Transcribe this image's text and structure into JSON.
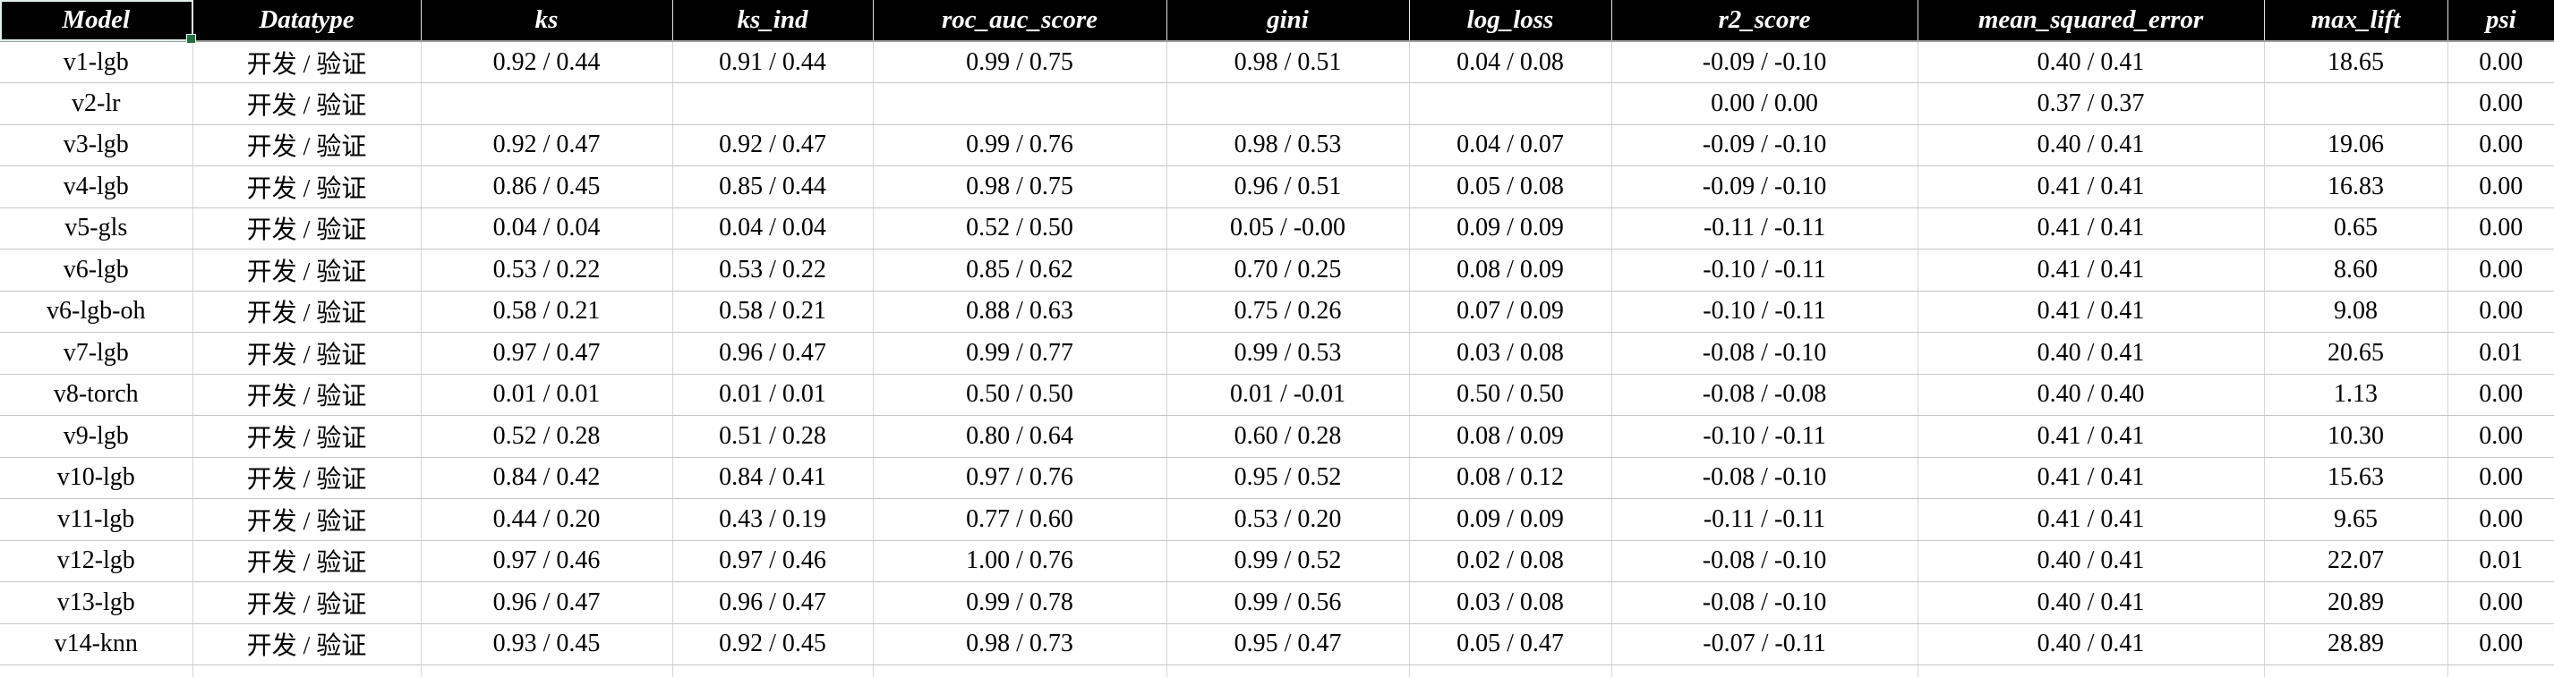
{
  "table": {
    "selected_cell": "Model",
    "columns": [
      {
        "key": "model",
        "label": "Model"
      },
      {
        "key": "datatype",
        "label": "Datatype"
      },
      {
        "key": "ks",
        "label": "ks"
      },
      {
        "key": "ks_ind",
        "label": "ks_ind"
      },
      {
        "key": "roc_auc_score",
        "label": "roc_auc_score"
      },
      {
        "key": "gini",
        "label": "gini"
      },
      {
        "key": "log_loss",
        "label": "log_loss"
      },
      {
        "key": "r2_score",
        "label": "r2_score"
      },
      {
        "key": "mean_squared_error",
        "label": "mean_squared_error"
      },
      {
        "key": "max_lift",
        "label": "max_lift"
      },
      {
        "key": "psi",
        "label": "psi"
      }
    ],
    "rows": [
      {
        "model": "v1-lgb",
        "datatype": "开发 / 验证",
        "ks": "0.92 / 0.44",
        "ks_ind": "0.91 / 0.44",
        "roc_auc_score": "0.99 / 0.75",
        "gini": "0.98 / 0.51",
        "log_loss": "0.04 / 0.08",
        "r2_score": "-0.09 / -0.10",
        "mean_squared_error": "0.40 / 0.41",
        "max_lift": "18.65",
        "psi": "0.00"
      },
      {
        "model": "v2-lr",
        "datatype": "开发 / 验证",
        "ks": "",
        "ks_ind": "",
        "roc_auc_score": "",
        "gini": "",
        "log_loss": "",
        "r2_score": "0.00 / 0.00",
        "mean_squared_error": "0.37 / 0.37",
        "max_lift": "",
        "psi": "0.00"
      },
      {
        "model": "v3-lgb",
        "datatype": "开发 / 验证",
        "ks": "0.92 / 0.47",
        "ks_ind": "0.92 / 0.47",
        "roc_auc_score": "0.99 / 0.76",
        "gini": "0.98 / 0.53",
        "log_loss": "0.04 / 0.07",
        "r2_score": "-0.09 / -0.10",
        "mean_squared_error": "0.40 / 0.41",
        "max_lift": "19.06",
        "psi": "0.00"
      },
      {
        "model": "v4-lgb",
        "datatype": "开发 / 验证",
        "ks": "0.86 / 0.45",
        "ks_ind": "0.85 / 0.44",
        "roc_auc_score": "0.98 / 0.75",
        "gini": "0.96 / 0.51",
        "log_loss": "0.05 / 0.08",
        "r2_score": "-0.09 / -0.10",
        "mean_squared_error": "0.41 / 0.41",
        "max_lift": "16.83",
        "psi": "0.00"
      },
      {
        "model": "v5-gls",
        "datatype": "开发 / 验证",
        "ks": "0.04 / 0.04",
        "ks_ind": "0.04 / 0.04",
        "roc_auc_score": "0.52 / 0.50",
        "gini": "0.05 / -0.00",
        "log_loss": "0.09 / 0.09",
        "r2_score": "-0.11 / -0.11",
        "mean_squared_error": "0.41 / 0.41",
        "max_lift": "0.65",
        "psi": "0.00"
      },
      {
        "model": "v6-lgb",
        "datatype": "开发 / 验证",
        "ks": "0.53 / 0.22",
        "ks_ind": "0.53 / 0.22",
        "roc_auc_score": "0.85 / 0.62",
        "gini": "0.70 / 0.25",
        "log_loss": "0.08 / 0.09",
        "r2_score": "-0.10 / -0.11",
        "mean_squared_error": "0.41 / 0.41",
        "max_lift": "8.60",
        "psi": "0.00"
      },
      {
        "model": "v6-lgb-oh",
        "datatype": "开发 / 验证",
        "ks": "0.58 / 0.21",
        "ks_ind": "0.58 / 0.21",
        "roc_auc_score": "0.88 / 0.63",
        "gini": "0.75 / 0.26",
        "log_loss": "0.07 / 0.09",
        "r2_score": "-0.10 / -0.11",
        "mean_squared_error": "0.41 / 0.41",
        "max_lift": "9.08",
        "psi": "0.00"
      },
      {
        "model": "v7-lgb",
        "datatype": "开发 / 验证",
        "ks": "0.97 / 0.47",
        "ks_ind": "0.96 / 0.47",
        "roc_auc_score": "0.99 / 0.77",
        "gini": "0.99 / 0.53",
        "log_loss": "0.03 / 0.08",
        "r2_score": "-0.08 / -0.10",
        "mean_squared_error": "0.40 / 0.41",
        "max_lift": "20.65",
        "psi": "0.01"
      },
      {
        "model": "v8-torch",
        "datatype": "开发 / 验证",
        "ks": "0.01 / 0.01",
        "ks_ind": "0.01 / 0.01",
        "roc_auc_score": "0.50 / 0.50",
        "gini": "0.01 / -0.01",
        "log_loss": "0.50 / 0.50",
        "r2_score": "-0.08 / -0.08",
        "mean_squared_error": "0.40 / 0.40",
        "max_lift": "1.13",
        "psi": "0.00"
      },
      {
        "model": "v9-lgb",
        "datatype": "开发 / 验证",
        "ks": "0.52 / 0.28",
        "ks_ind": "0.51 / 0.28",
        "roc_auc_score": "0.80 / 0.64",
        "gini": "0.60 / 0.28",
        "log_loss": "0.08 / 0.09",
        "r2_score": "-0.10 / -0.11",
        "mean_squared_error": "0.41 / 0.41",
        "max_lift": "10.30",
        "psi": "0.00"
      },
      {
        "model": "v10-lgb",
        "datatype": "开发 / 验证",
        "ks": "0.84 / 0.42",
        "ks_ind": "0.84 / 0.41",
        "roc_auc_score": "0.97 / 0.76",
        "gini": "0.95 / 0.52",
        "log_loss": "0.08 / 0.12",
        "r2_score": "-0.08 / -0.10",
        "mean_squared_error": "0.41 / 0.41",
        "max_lift": "15.63",
        "psi": "0.00"
      },
      {
        "model": "v11-lgb",
        "datatype": "开发 / 验证",
        "ks": "0.44 / 0.20",
        "ks_ind": "0.43 / 0.19",
        "roc_auc_score": "0.77 / 0.60",
        "gini": "0.53 / 0.20",
        "log_loss": "0.09 / 0.09",
        "r2_score": "-0.11 / -0.11",
        "mean_squared_error": "0.41 / 0.41",
        "max_lift": "9.65",
        "psi": "0.00"
      },
      {
        "model": "v12-lgb",
        "datatype": "开发 / 验证",
        "ks": "0.97 / 0.46",
        "ks_ind": "0.97 / 0.46",
        "roc_auc_score": "1.00 / 0.76",
        "gini": "0.99 / 0.52",
        "log_loss": "0.02 / 0.08",
        "r2_score": "-0.08 / -0.10",
        "mean_squared_error": "0.40 / 0.41",
        "max_lift": "22.07",
        "psi": "0.01"
      },
      {
        "model": "v13-lgb",
        "datatype": "开发 / 验证",
        "ks": "0.96 / 0.47",
        "ks_ind": "0.96 / 0.47",
        "roc_auc_score": "0.99 / 0.78",
        "gini": "0.99 / 0.56",
        "log_loss": "0.03 / 0.08",
        "r2_score": "-0.08 / -0.10",
        "mean_squared_error": "0.40 / 0.41",
        "max_lift": "20.89",
        "psi": "0.00"
      },
      {
        "model": "v14-knn",
        "datatype": "开发 / 验证",
        "ks": "0.93 / 0.45",
        "ks_ind": "0.92 / 0.45",
        "roc_auc_score": "0.98 / 0.73",
        "gini": "0.95 / 0.47",
        "log_loss": "0.05 / 0.47",
        "r2_score": "-0.07 / -0.11",
        "mean_squared_error": "0.40 / 0.41",
        "max_lift": "28.89",
        "psi": "0.00"
      }
    ],
    "colors": {
      "header_bg": "#000000",
      "header_text": "#ffffff",
      "gridline": "#c6c6c6",
      "selection_outline": "#e3eee8",
      "fill_handle": "#1e7145"
    }
  }
}
